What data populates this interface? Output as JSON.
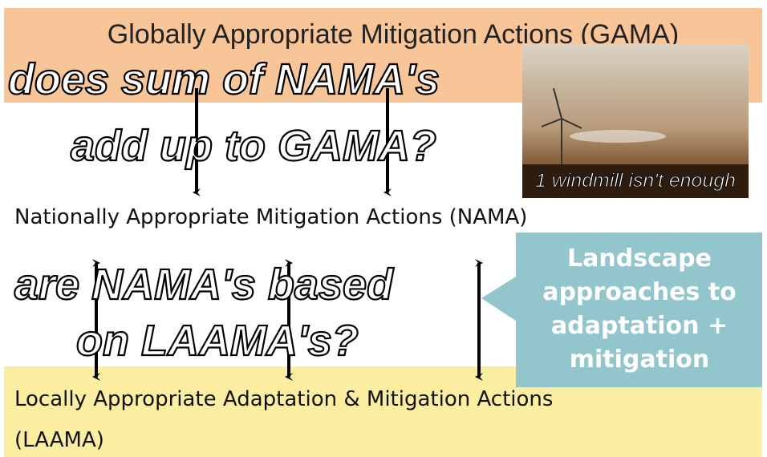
{
  "title": "Globally Appropriate Mitigation Actions (GAMA)",
  "question_1": {
    "line_1": "does  sum of  NAMA's",
    "line_2": "add up to GAMA?"
  },
  "photo_caption": "1 windmill isn't enough",
  "nama_label": "Nationally Appropriate Mitigation Actions (NAMA)",
  "question_2": {
    "line_1": "are NAMA's based",
    "line_2": "on LAAMA's?"
  },
  "callout": {
    "lines": [
      "Landscape",
      "approaches to",
      "adaptation +",
      "mitigation"
    ]
  },
  "laama_label": {
    "line_1": "Locally Appropriate Adaptation & Mitigation Actions",
    "line_2": "(LAAMA)"
  }
}
